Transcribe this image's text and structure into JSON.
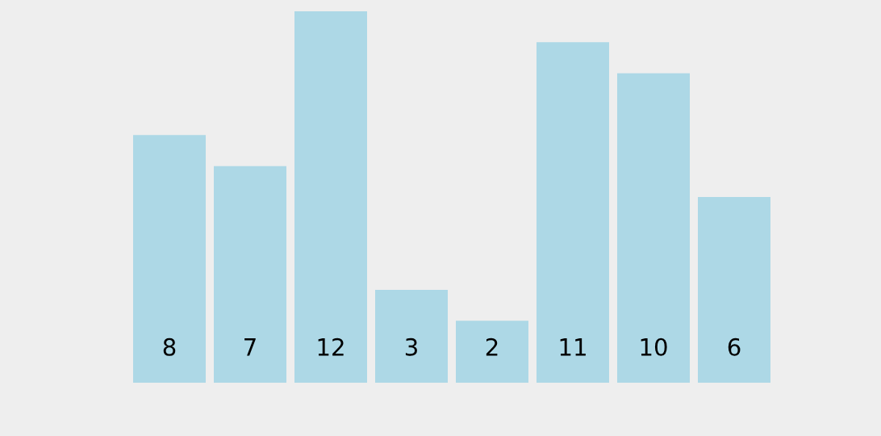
{
  "chart_data": {
    "type": "bar",
    "categories": [
      null,
      null,
      null,
      null,
      null,
      null,
      null,
      null
    ],
    "values": [
      8,
      7,
      12,
      3,
      2,
      11,
      10,
      6
    ],
    "color": "#add8e6",
    "data_labels": true,
    "legend": false,
    "tick_labels": false
  }
}
